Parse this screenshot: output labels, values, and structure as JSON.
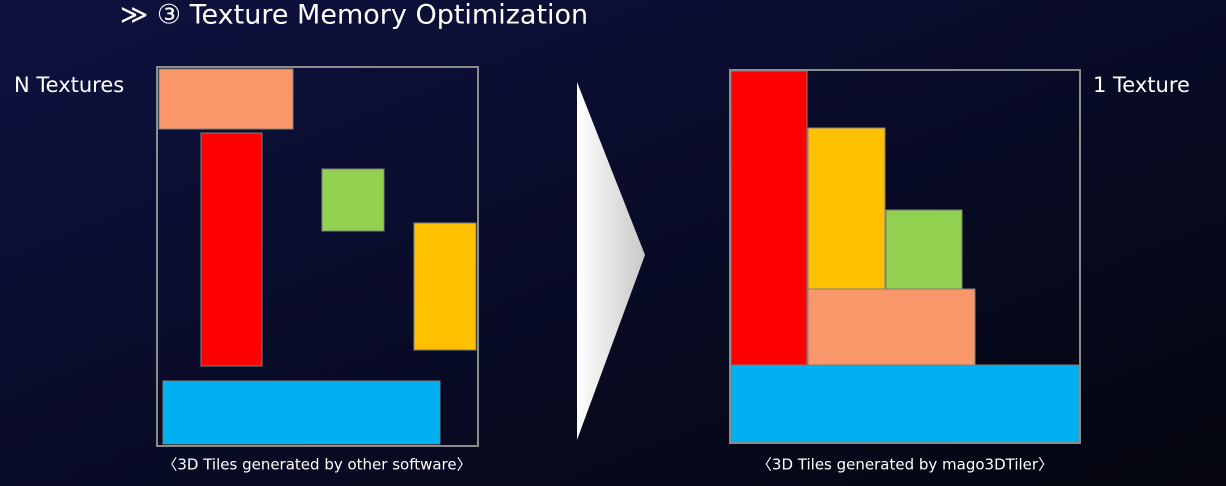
{
  "title": "≫ ③ Texture Memory Optimization",
  "left": {
    "label": "N Textures",
    "caption": "〈3D Tiles generated by other software〉"
  },
  "right": {
    "label": "1 Texture",
    "caption": "〈3D Tiles generated by mago3DTiler〉"
  }
}
